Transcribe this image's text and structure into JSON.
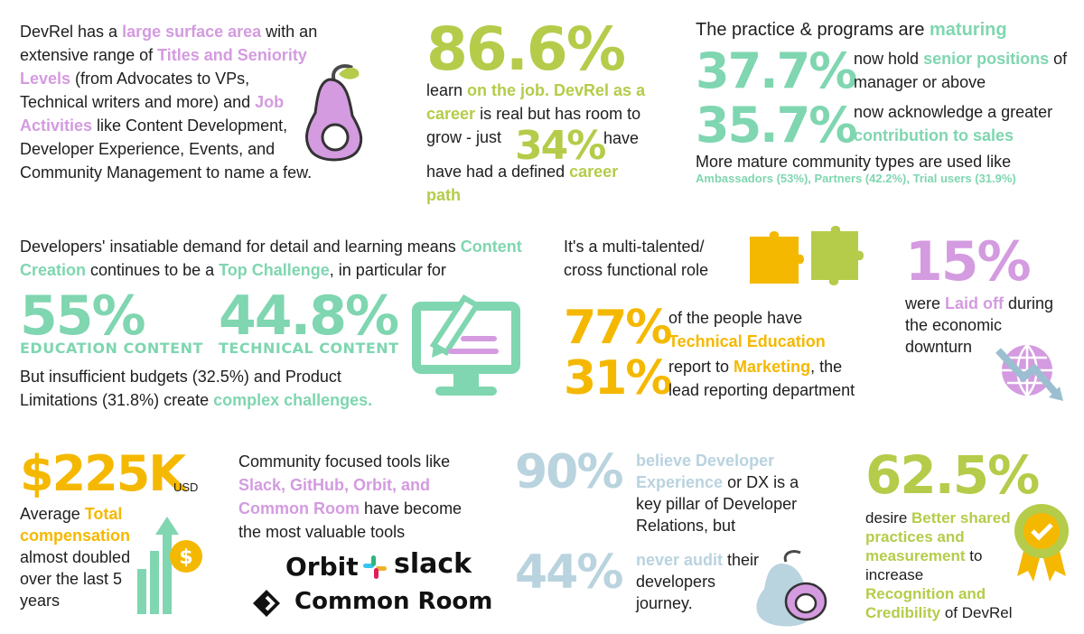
{
  "p1": {
    "a": "DevRel has a ",
    "b": "large surface area",
    "c": " with an extensive range of ",
    "d": "Titles and Seniority Levels",
    "e": " (from Advocates to VPs, Technical writers and more) and ",
    "f": "Job Activities",
    "g": " like Content Development, Developer Experience, Events, and Community Management to name a few."
  },
  "p2": {
    "stat": "86.6%",
    "a": "learn ",
    "b": "on the job. DevRel as a career",
    "c": " is real but has room to grow -  just ",
    "stat2": "34%",
    "d": " have had a defined ",
    "e": "career path"
  },
  "p3": {
    "h1": "The practice & programs are ",
    "h2": "maturing",
    "s1": "37.7%",
    "t1a": "now hold ",
    "t1b": "senior positions",
    "t1c": " of manager or above",
    "s2": "35.7%",
    "t2a": "now acknowledge a greater ",
    "t2b": "contribution to sales",
    "t3": "More mature community types are used like",
    "t4": "Ambassadors (53%), Partners (42.2%), Trial users (31.9%)"
  },
  "p4": {
    "a": "Developers' insatiable demand for detail and learning means ",
    "b": "Content Creation",
    "c": " continues to be a ",
    "d": "Top Challenge",
    "e": ", in particular for",
    "s1": "55%",
    "c1": "EDUCATION CONTENT",
    "s2": "44.8%",
    "c2": "TECHNICAL CONTENT",
    "f": "But insufficient budgets (32.5%) and Product Limitations (31.8%) create ",
    "g": "complex challenges."
  },
  "p5": {
    "h": "It's a multi-talented/ cross functional role",
    "s1": "77%",
    "t1a": "of the people have ",
    "t1b": "Technical Education",
    "s2": "31%",
    "t2a": "report to ",
    "t2b": "Marketing",
    "t2c": ", the lead reporting department"
  },
  "p6": {
    "stat": "15%",
    "a": "were ",
    "b": "Laid off",
    "c": " during the economic downturn"
  },
  "p7": {
    "stat": "$225K",
    "unit": "USD",
    "a": "Average ",
    "b": "Total compensation",
    "c": " almost doubled over the last 5 years"
  },
  "p8": {
    "a": "Community focused tools like ",
    "b": "Slack, GitHub, Orbit, and Common Room",
    "c": " have become the most valuable tools",
    "logo1": "Orbit",
    "logo2": "slack",
    "logo3": "Common Room"
  },
  "p9": {
    "s1": "90%",
    "t1a": "believe Developer Experience",
    "t1b": " or DX is a key pillar of Developer Relations, but",
    "s2": "44%",
    "t2a": "never audit",
    "t2b": " their developers journey."
  },
  "p10": {
    "stat": "62.5%",
    "a": "desire ",
    "b": "Better shared practices and measurement",
    "c": " to increase ",
    "d": "Recognition and Credibility",
    "e": " of DevRel"
  },
  "colors": {
    "pink": "#d49be0",
    "lime": "#b4cc4a",
    "mint": "#7fd6b0",
    "orange": "#f5b800",
    "blue": "#b9d3df"
  },
  "icons": [
    "pear-icon",
    "puzzle-icon",
    "monitor-pencil-icon",
    "globe-down-arrow-icon",
    "money-growth-icon",
    "pear-icon",
    "award-badge-icon",
    "orbit-logo",
    "slack-logo",
    "common-room-logo"
  ]
}
